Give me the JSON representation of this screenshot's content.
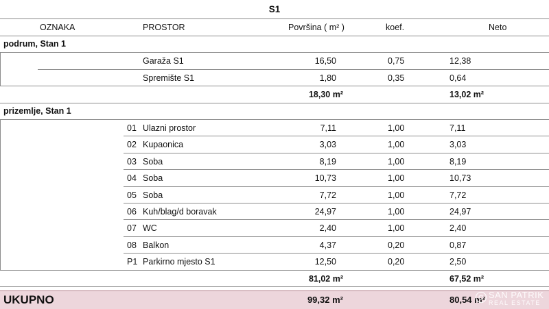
{
  "title": "S1",
  "headers": {
    "oznaka": "OZNAKA",
    "prostor": "PROSTOR",
    "povrsina": "Površina ( m² )",
    "koef": "koef.",
    "neto": "Neto"
  },
  "sections": [
    {
      "label": "podrum, Stan 1",
      "rows": [
        {
          "num": "",
          "name": "Garaža S1",
          "area": "16,50",
          "koef": "0,75",
          "neto": "12,38"
        },
        {
          "num": "",
          "name": "Spremište S1",
          "area": "1,80",
          "koef": "0,35",
          "neto": "0,64"
        }
      ],
      "subtotal_area": "18,30 m²",
      "subtotal_neto": "13,02 m²"
    },
    {
      "label": "prizemlje, Stan 1",
      "rows": [
        {
          "num": "01",
          "name": "Ulazni prostor",
          "area": "7,11",
          "koef": "1,00",
          "neto": "7,11"
        },
        {
          "num": "02",
          "name": "Kupaonica",
          "area": "3,03",
          "koef": "1,00",
          "neto": "3,03"
        },
        {
          "num": "03",
          "name": "Soba",
          "area": "8,19",
          "koef": "1,00",
          "neto": "8,19"
        },
        {
          "num": "04",
          "name": "Soba",
          "area": "10,73",
          "koef": "1,00",
          "neto": "10,73"
        },
        {
          "num": "05",
          "name": "Soba",
          "area": "7,72",
          "koef": "1,00",
          "neto": "7,72"
        },
        {
          "num": "06",
          "name": "Kuh/blag/d boravak",
          "area": "24,97",
          "koef": "1,00",
          "neto": "24,97"
        },
        {
          "num": "07",
          "name": "WC",
          "area": "2,40",
          "koef": "1,00",
          "neto": "2,40"
        },
        {
          "num": "08",
          "name": "Balkon",
          "area": "4,37",
          "koef": "0,20",
          "neto": "0,87"
        },
        {
          "num": "P1",
          "name": "Parkirno mjesto S1",
          "area": "12,50",
          "koef": "0,20",
          "neto": "2,50"
        }
      ],
      "subtotal_area": "81,02 m²",
      "subtotal_neto": "67,52 m²"
    }
  ],
  "total": {
    "label": "UKUPNO",
    "area": "99,32 m²",
    "neto": "80,54 m²"
  },
  "watermark": {
    "line1": "SAN PATRIK",
    "line2": "REAL ESTATE"
  },
  "colors": {
    "total_band": "#edd6dc",
    "grid": "#8a8a8a"
  }
}
